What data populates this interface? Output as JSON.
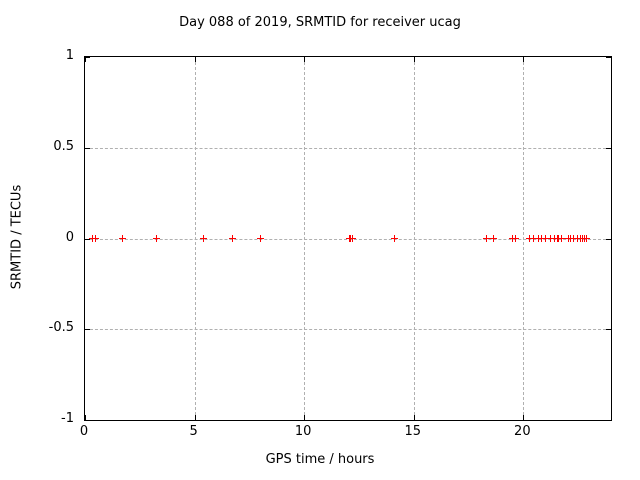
{
  "window": {
    "title": "Day 088 of 2019, SRMTID for receiver ucag"
  },
  "chart_data": {
    "type": "scatter",
    "title": "Day 088 of 2019, SRMTID for receiver ucag",
    "xlabel": "GPS time / hours",
    "ylabel": "SRMTID / TECUs",
    "xlim": [
      0,
      24
    ],
    "ylim": [
      -1,
      1
    ],
    "xticks": [
      0,
      5,
      10,
      15,
      20
    ],
    "xtick_labels": [
      "0",
      "5",
      "10",
      "15",
      "20"
    ],
    "yticks": [
      -1,
      -0.5,
      0,
      0.5,
      1
    ],
    "ytick_labels": [
      "-1",
      "-0.5",
      "0",
      "0.5",
      "1"
    ],
    "grid": true,
    "grid_style": "dashed",
    "grid_color": "#b0b0b0",
    "border_color": "#000000",
    "background_color": "#ffffff",
    "legend_position": "none",
    "marker": "plus",
    "marker_color": "#ff0000",
    "series": [
      {
        "name": "SRMTID",
        "y_constant": 0,
        "x": [
          0.35,
          0.5,
          1.7,
          3.25,
          5.4,
          6.75,
          8.0,
          12.07,
          12.13,
          12.2,
          14.1,
          18.3,
          18.65,
          19.5,
          19.65,
          20.3,
          20.48,
          20.67,
          20.85,
          21.03,
          21.22,
          21.4,
          21.55,
          21.62,
          21.76,
          22.04,
          22.17,
          22.31,
          22.45,
          22.59,
          22.68,
          22.77,
          22.9
        ]
      }
    ]
  }
}
